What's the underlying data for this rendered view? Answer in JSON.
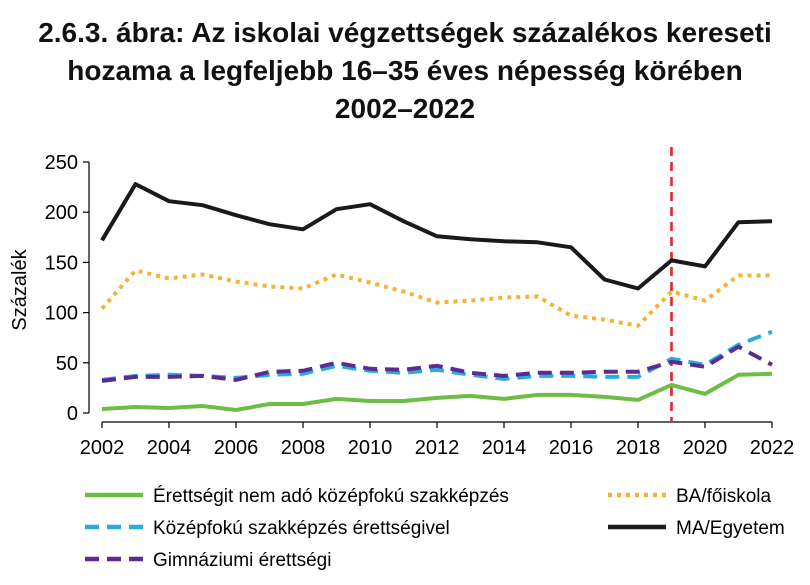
{
  "chart_data": {
    "type": "line",
    "title_lines": [
      "2.6.3. ábra: Az iskolai végzettségek százalékos kereseti",
      "hozama a legfeljebb 16–35 éves népesség körében",
      "2002–2022"
    ],
    "ylabel": "Százalék",
    "xlabel": "",
    "ylim": [
      0,
      250
    ],
    "yticks": [
      "0",
      "50",
      "100",
      "150",
      "200",
      "250"
    ],
    "xticks": [
      "2002",
      "2004",
      "2006",
      "2008",
      "2010",
      "2012",
      "2014",
      "2016",
      "2018",
      "2020",
      "2022"
    ],
    "x": [
      2002,
      2003,
      2004,
      2005,
      2006,
      2007,
      2008,
      2009,
      2010,
      2011,
      2012,
      2013,
      2014,
      2015,
      2016,
      2017,
      2018,
      2019,
      2020,
      2021,
      2022
    ],
    "reference_line": {
      "x": 2019,
      "color": "#e3262b",
      "style": "dashed"
    },
    "series": [
      {
        "name": "Érettségit nem adó középfokú szakképzés",
        "color": "#6cbd45",
        "style": "solid",
        "values": [
          4,
          6,
          5,
          7,
          3,
          9,
          9,
          14,
          12,
          12,
          15,
          17,
          14,
          18,
          18,
          16,
          13,
          28,
          19,
          38,
          39
        ]
      },
      {
        "name": "Középfokú szakképzés érettségivel",
        "color": "#29abe2",
        "style": "dashed",
        "values": [
          33,
          37,
          38,
          37,
          35,
          38,
          39,
          47,
          42,
          40,
          43,
          38,
          34,
          37,
          37,
          36,
          36,
          54,
          48,
          68,
          81
        ]
      },
      {
        "name": "Gimnáziumi érettségi",
        "color": "#5b2c8f",
        "style": "dashed",
        "values": [
          32,
          36,
          36,
          37,
          33,
          41,
          42,
          50,
          44,
          43,
          47,
          40,
          37,
          40,
          40,
          41,
          41,
          51,
          46,
          66,
          48
        ]
      },
      {
        "name": "BA/főiskola",
        "color": "#f5b335",
        "style": "dotted",
        "values": [
          104,
          142,
          134,
          138,
          131,
          126,
          124,
          138,
          130,
          121,
          110,
          112,
          115,
          116,
          97,
          93,
          87,
          121,
          112,
          137,
          137
        ]
      },
      {
        "name": "MA/Egyetem",
        "color": "#1a1a1a",
        "style": "solid",
        "values": [
          172,
          228,
          211,
          207,
          197,
          188,
          183,
          203,
          208,
          191,
          176,
          173,
          171,
          170,
          165,
          133,
          124,
          152,
          146,
          190,
          191
        ]
      }
    ],
    "legend": {
      "placement": "bottom",
      "left_column": [
        "Érettségit nem adó középfokú szakképzés",
        "Középfokú szakképzés érettségivel",
        "Gimnáziumi érettségi"
      ],
      "right_column": [
        "BA/főiskola",
        "MA/Egyetem"
      ]
    }
  }
}
